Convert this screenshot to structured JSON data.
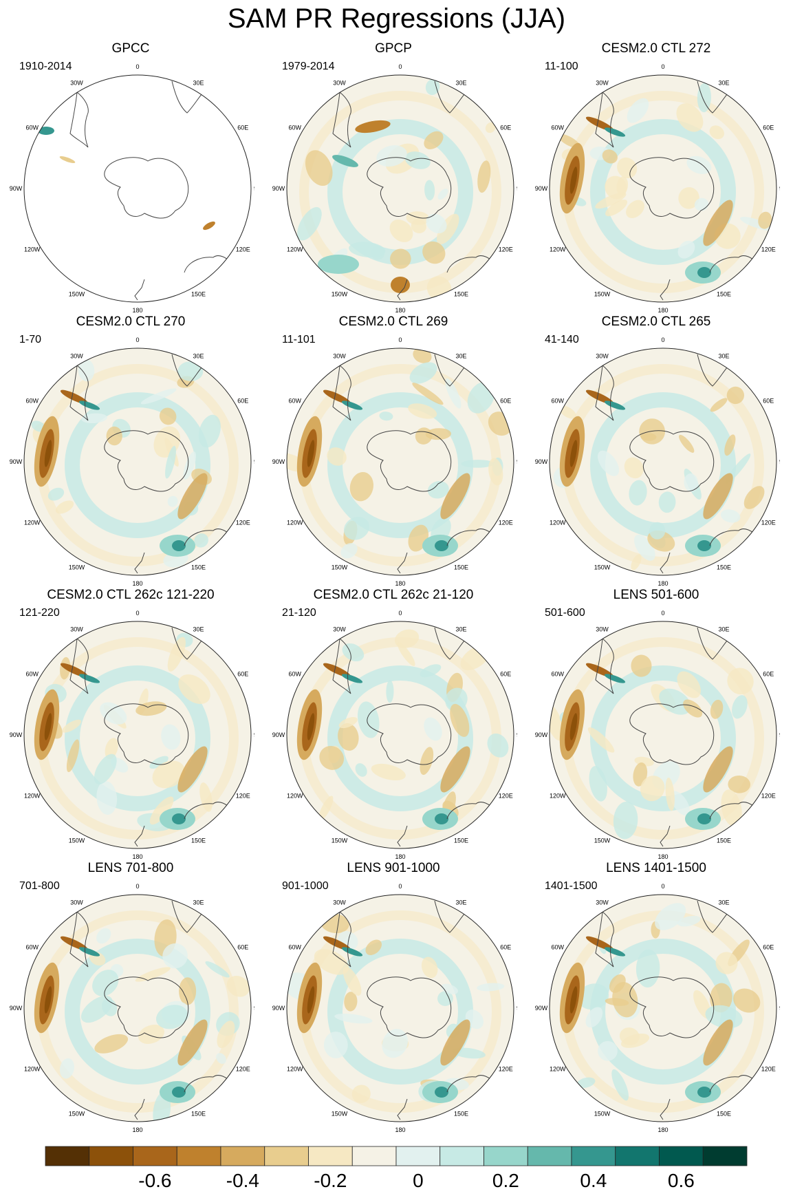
{
  "title": "SAM PR Regressions (JJA)",
  "map_labels": [
    "0",
    "30E",
    "60E",
    "90E",
    "120E",
    "150E",
    "180",
    "150W",
    "120W",
    "90W",
    "60W",
    "30W"
  ],
  "panels": [
    {
      "title": "GPCC",
      "period": "1910-2014",
      "style": "obs_land"
    },
    {
      "title": "GPCP",
      "period": "1979-2014",
      "style": "obs_full"
    },
    {
      "title": "CESM2.0 CTL 272",
      "period": "11-100",
      "style": "model"
    },
    {
      "title": "CESM2.0 CTL 270",
      "period": "1-70",
      "style": "model"
    },
    {
      "title": "CESM2.0 CTL 269",
      "period": "11-101",
      "style": "model"
    },
    {
      "title": "CESM2.0 CTL 265",
      "period": "41-140",
      "style": "model"
    },
    {
      "title": "CESM2.0 CTL 262c 121-220",
      "period": "121-220",
      "style": "model"
    },
    {
      "title": "CESM2.0 CTL 262c 21-120",
      "period": "21-120",
      "style": "model"
    },
    {
      "title": "LENS 501-600",
      "period": "501-600",
      "style": "model"
    },
    {
      "title": "LENS 701-800",
      "period": "701-800",
      "style": "model"
    },
    {
      "title": "LENS 901-1000",
      "period": "901-1000",
      "style": "model"
    },
    {
      "title": "LENS 1401-1500",
      "period": "1401-1500",
      "style": "model"
    }
  ],
  "colorbar": {
    "colors": [
      "#543005",
      "#8c510a",
      "#a9661b",
      "#bf812d",
      "#d6aa5e",
      "#e8cd8e",
      "#f6e8c3",
      "#f5f2e6",
      "#e2f1ef",
      "#c7eae5",
      "#97d6cb",
      "#65b8ac",
      "#35978f",
      "#12766e",
      "#01594f",
      "#003c30"
    ],
    "tick_values": [
      "-0.6",
      "-0.4",
      "-0.2",
      "0",
      "0.2",
      "0.4",
      "0.6"
    ]
  }
}
